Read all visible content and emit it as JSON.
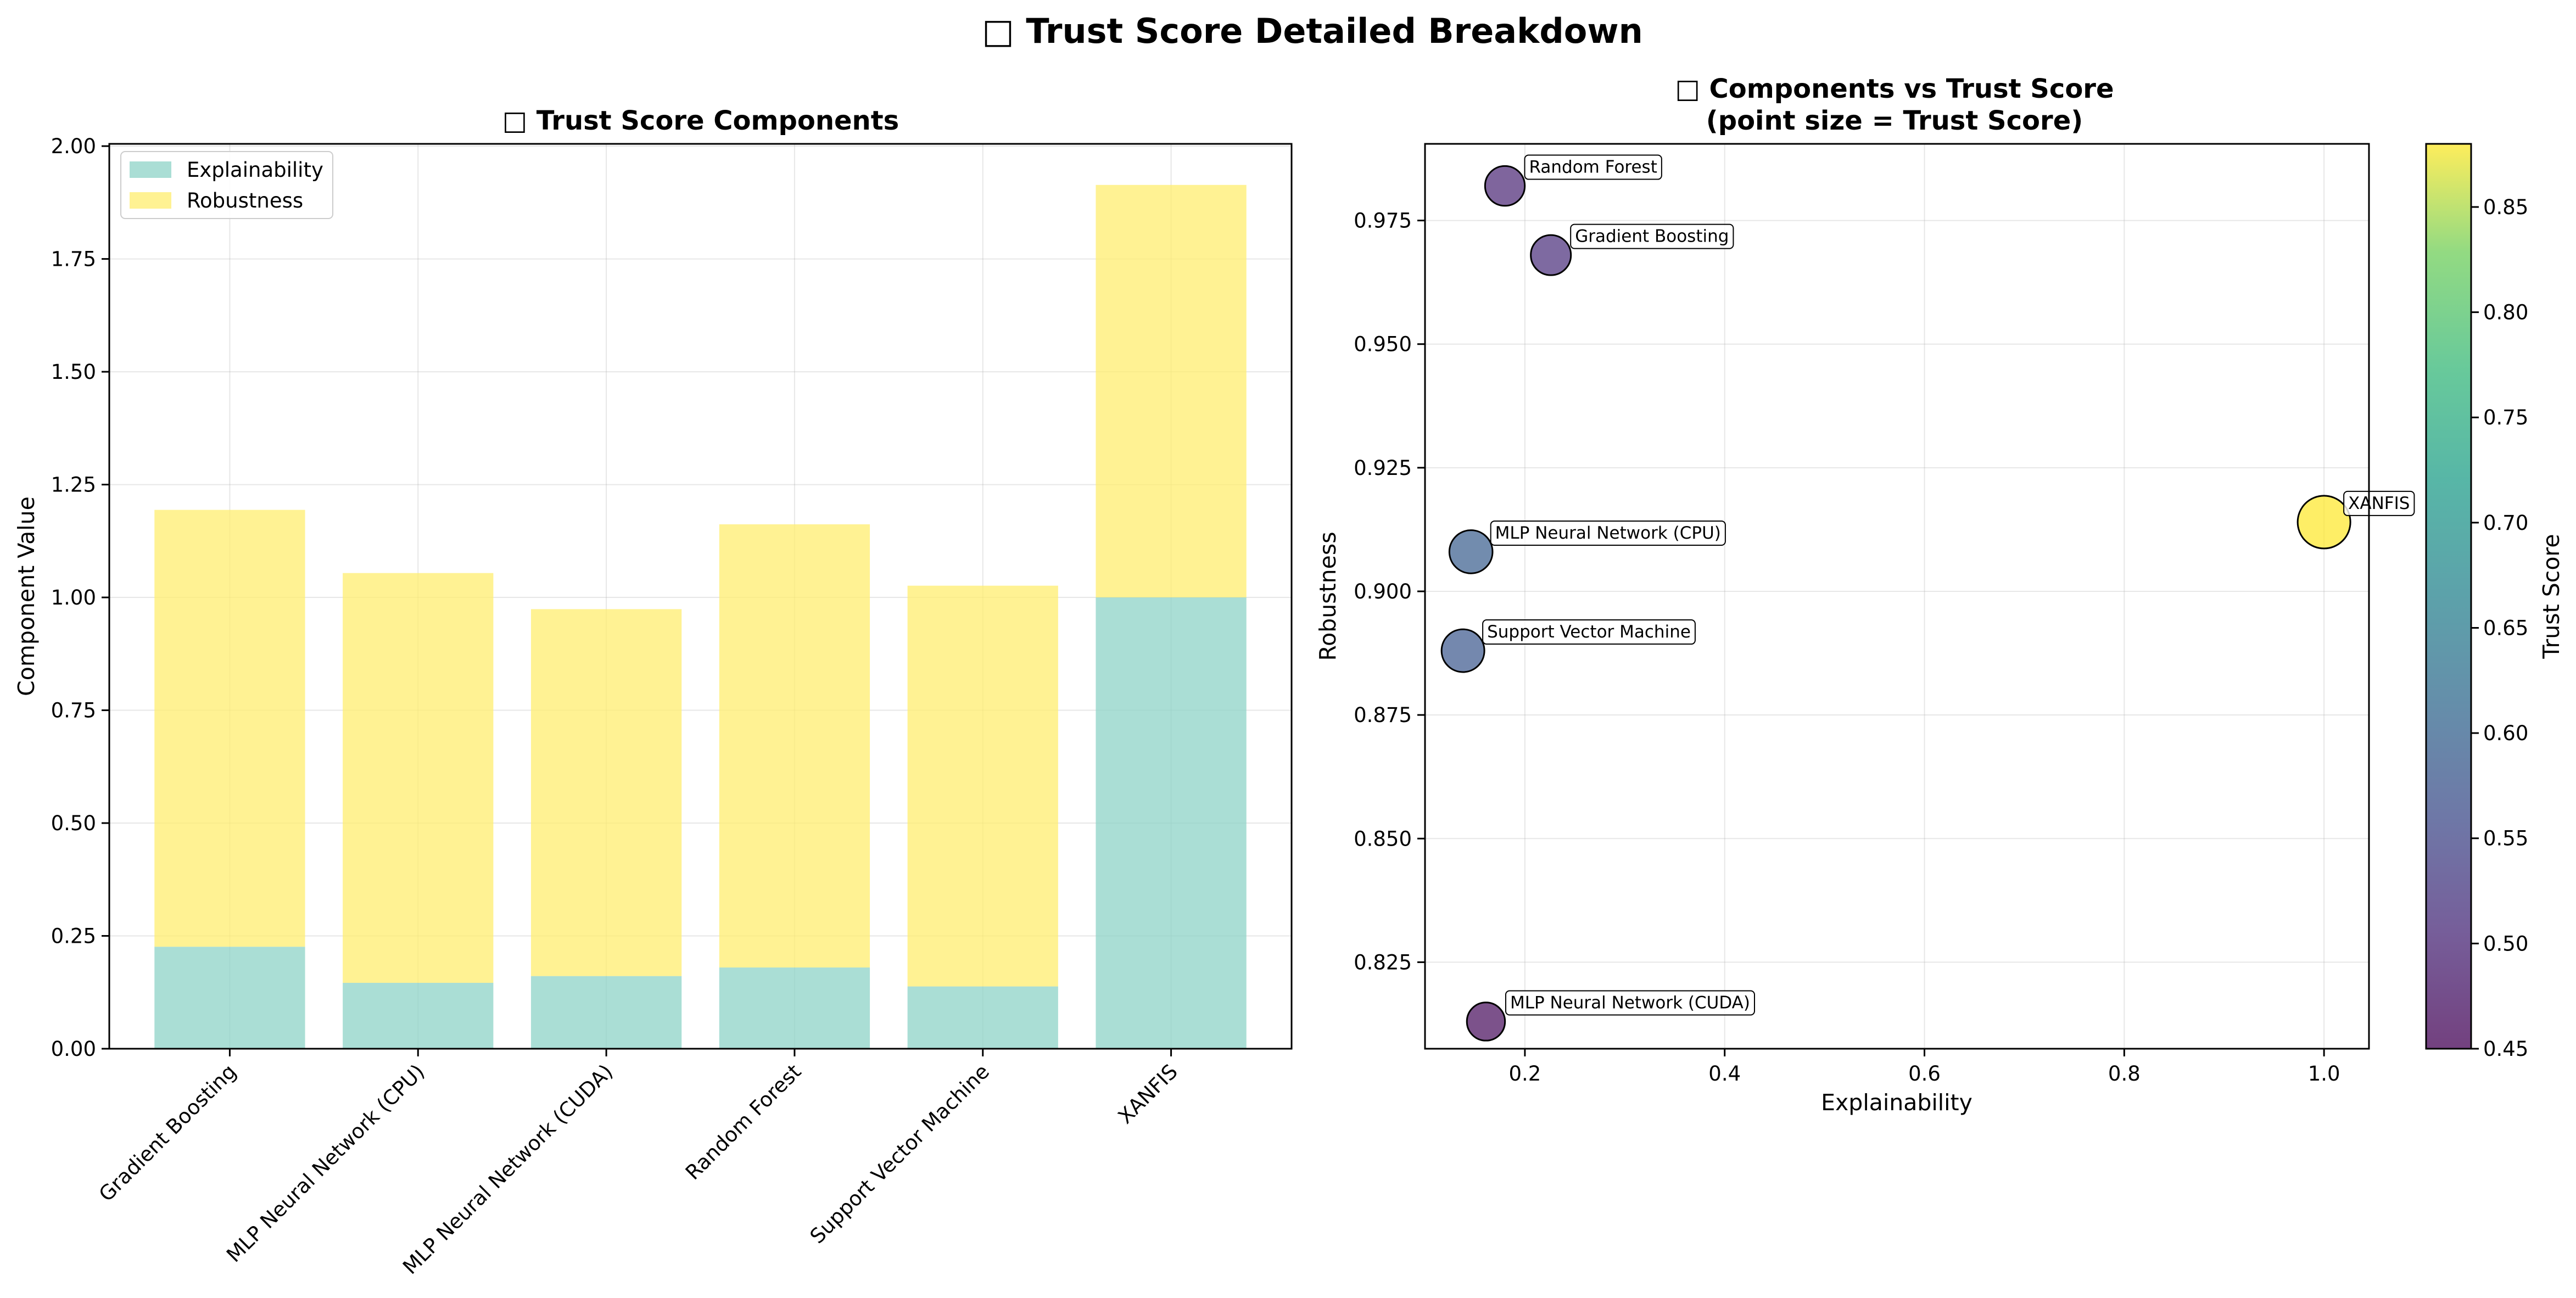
{
  "figure": {
    "title": "□ Trust Score Detailed Breakdown"
  },
  "left_chart": {
    "title": "□ Trust Score Components",
    "ylabel": "Component Value",
    "legend": [
      "Explainability",
      "Robustness"
    ],
    "yticks": [
      "0.00",
      "0.25",
      "0.50",
      "0.75",
      "1.00",
      "1.25",
      "1.50",
      "1.75",
      "2.00"
    ]
  },
  "right_chart": {
    "title_line1": "□ Components vs Trust Score",
    "title_line2": "(point size = Trust Score)",
    "xlabel": "Explainability",
    "ylabel": "Robustness",
    "xticks": [
      "0.2",
      "0.4",
      "0.6",
      "0.8",
      "1.0"
    ],
    "yticks": [
      "0.825",
      "0.850",
      "0.875",
      "0.900",
      "0.925",
      "0.950",
      "0.975"
    ],
    "colorbar_label": "Trust Score",
    "colorbar_ticks": [
      "0.45",
      "0.50",
      "0.55",
      "0.60",
      "0.65",
      "0.70",
      "0.75",
      "0.80",
      "0.85"
    ]
  },
  "colors": {
    "explainability": "#8dd3c7",
    "robustness": "#ffed6f"
  },
  "chart_data": [
    {
      "type": "bar",
      "stacked": true,
      "title": "□ Trust Score Components",
      "xlabel": "",
      "ylabel": "Component Value",
      "categories": [
        "Gradient Boosting",
        "MLP Neural Network (CPU)",
        "MLP Neural Network (CUDA)",
        "Random Forest",
        "Support Vector Machine",
        "XANFIS"
      ],
      "series": [
        {
          "name": "Explainability",
          "values": [
            0.226,
            0.146,
            0.161,
            0.18,
            0.138,
            1.0
          ]
        },
        {
          "name": "Robustness",
          "values": [
            0.968,
            0.908,
            0.813,
            0.982,
            0.888,
            0.914
          ]
        }
      ],
      "ylim": [
        0,
        2.0
      ],
      "grid": true,
      "legend": "top-left"
    },
    {
      "type": "scatter",
      "title": "□ Components vs Trust Score\n(point size = Trust Score)",
      "xlabel": "Explainability",
      "ylabel": "Robustness",
      "xlim": [
        0.1,
        1.045
      ],
      "ylim": [
        0.8075,
        0.9905
      ],
      "points": [
        {
          "label": "Random Forest",
          "x": 0.18,
          "y": 0.982,
          "trust": 0.5
        },
        {
          "label": "Gradient Boosting",
          "x": 0.226,
          "y": 0.968,
          "trust": 0.51
        },
        {
          "label": "XANFIS",
          "x": 1.0,
          "y": 0.914,
          "trust": 0.88
        },
        {
          "label": "MLP Neural Network (CPU)",
          "x": 0.146,
          "y": 0.908,
          "trust": 0.59
        },
        {
          "label": "Support Vector Machine",
          "x": 0.138,
          "y": 0.888,
          "trust": 0.58
        },
        {
          "label": "MLP Neural Network (CUDA)",
          "x": 0.161,
          "y": 0.813,
          "trust": 0.46
        }
      ],
      "colorbar": {
        "label": "Trust Score",
        "range": [
          0.45,
          0.88
        ],
        "colormap": "viridis"
      },
      "grid": true
    }
  ]
}
